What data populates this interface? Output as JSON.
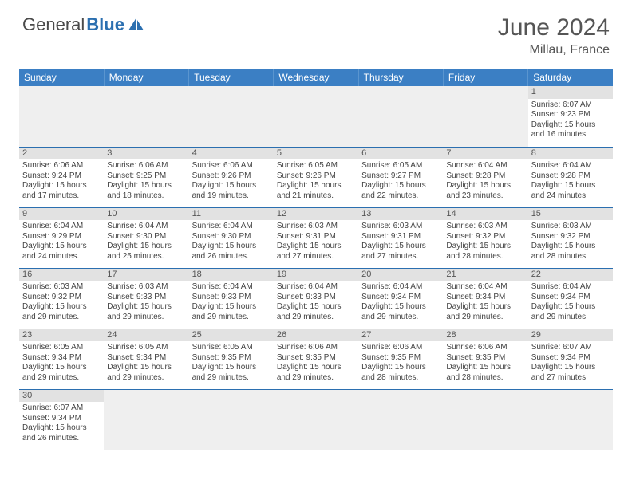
{
  "brand": {
    "part1": "General",
    "part2": "Blue"
  },
  "title": "June 2024",
  "location": "Millau, France",
  "colors": {
    "header_bg": "#3b7fc4",
    "header_text": "#ffffff",
    "day_bar_bg": "#e2e2e2",
    "border": "#2b6fb0",
    "logo_blue": "#2b6fb0",
    "text": "#444444"
  },
  "weekdays": [
    "Sunday",
    "Monday",
    "Tuesday",
    "Wednesday",
    "Thursday",
    "Friday",
    "Saturday"
  ],
  "weeks": [
    [
      null,
      null,
      null,
      null,
      null,
      null,
      {
        "d": "1",
        "sr": "Sunrise: 6:07 AM",
        "ss": "Sunset: 9:23 PM",
        "dl": "Daylight: 15 hours and 16 minutes."
      }
    ],
    [
      {
        "d": "2",
        "sr": "Sunrise: 6:06 AM",
        "ss": "Sunset: 9:24 PM",
        "dl": "Daylight: 15 hours and 17 minutes."
      },
      {
        "d": "3",
        "sr": "Sunrise: 6:06 AM",
        "ss": "Sunset: 9:25 PM",
        "dl": "Daylight: 15 hours and 18 minutes."
      },
      {
        "d": "4",
        "sr": "Sunrise: 6:06 AM",
        "ss": "Sunset: 9:26 PM",
        "dl": "Daylight: 15 hours and 19 minutes."
      },
      {
        "d": "5",
        "sr": "Sunrise: 6:05 AM",
        "ss": "Sunset: 9:26 PM",
        "dl": "Daylight: 15 hours and 21 minutes."
      },
      {
        "d": "6",
        "sr": "Sunrise: 6:05 AM",
        "ss": "Sunset: 9:27 PM",
        "dl": "Daylight: 15 hours and 22 minutes."
      },
      {
        "d": "7",
        "sr": "Sunrise: 6:04 AM",
        "ss": "Sunset: 9:28 PM",
        "dl": "Daylight: 15 hours and 23 minutes."
      },
      {
        "d": "8",
        "sr": "Sunrise: 6:04 AM",
        "ss": "Sunset: 9:28 PM",
        "dl": "Daylight: 15 hours and 24 minutes."
      }
    ],
    [
      {
        "d": "9",
        "sr": "Sunrise: 6:04 AM",
        "ss": "Sunset: 9:29 PM",
        "dl": "Daylight: 15 hours and 24 minutes."
      },
      {
        "d": "10",
        "sr": "Sunrise: 6:04 AM",
        "ss": "Sunset: 9:30 PM",
        "dl": "Daylight: 15 hours and 25 minutes."
      },
      {
        "d": "11",
        "sr": "Sunrise: 6:04 AM",
        "ss": "Sunset: 9:30 PM",
        "dl": "Daylight: 15 hours and 26 minutes."
      },
      {
        "d": "12",
        "sr": "Sunrise: 6:03 AM",
        "ss": "Sunset: 9:31 PM",
        "dl": "Daylight: 15 hours and 27 minutes."
      },
      {
        "d": "13",
        "sr": "Sunrise: 6:03 AM",
        "ss": "Sunset: 9:31 PM",
        "dl": "Daylight: 15 hours and 27 minutes."
      },
      {
        "d": "14",
        "sr": "Sunrise: 6:03 AM",
        "ss": "Sunset: 9:32 PM",
        "dl": "Daylight: 15 hours and 28 minutes."
      },
      {
        "d": "15",
        "sr": "Sunrise: 6:03 AM",
        "ss": "Sunset: 9:32 PM",
        "dl": "Daylight: 15 hours and 28 minutes."
      }
    ],
    [
      {
        "d": "16",
        "sr": "Sunrise: 6:03 AM",
        "ss": "Sunset: 9:32 PM",
        "dl": "Daylight: 15 hours and 29 minutes."
      },
      {
        "d": "17",
        "sr": "Sunrise: 6:03 AM",
        "ss": "Sunset: 9:33 PM",
        "dl": "Daylight: 15 hours and 29 minutes."
      },
      {
        "d": "18",
        "sr": "Sunrise: 6:04 AM",
        "ss": "Sunset: 9:33 PM",
        "dl": "Daylight: 15 hours and 29 minutes."
      },
      {
        "d": "19",
        "sr": "Sunrise: 6:04 AM",
        "ss": "Sunset: 9:33 PM",
        "dl": "Daylight: 15 hours and 29 minutes."
      },
      {
        "d": "20",
        "sr": "Sunrise: 6:04 AM",
        "ss": "Sunset: 9:34 PM",
        "dl": "Daylight: 15 hours and 29 minutes."
      },
      {
        "d": "21",
        "sr": "Sunrise: 6:04 AM",
        "ss": "Sunset: 9:34 PM",
        "dl": "Daylight: 15 hours and 29 minutes."
      },
      {
        "d": "22",
        "sr": "Sunrise: 6:04 AM",
        "ss": "Sunset: 9:34 PM",
        "dl": "Daylight: 15 hours and 29 minutes."
      }
    ],
    [
      {
        "d": "23",
        "sr": "Sunrise: 6:05 AM",
        "ss": "Sunset: 9:34 PM",
        "dl": "Daylight: 15 hours and 29 minutes."
      },
      {
        "d": "24",
        "sr": "Sunrise: 6:05 AM",
        "ss": "Sunset: 9:34 PM",
        "dl": "Daylight: 15 hours and 29 minutes."
      },
      {
        "d": "25",
        "sr": "Sunrise: 6:05 AM",
        "ss": "Sunset: 9:35 PM",
        "dl": "Daylight: 15 hours and 29 minutes."
      },
      {
        "d": "26",
        "sr": "Sunrise: 6:06 AM",
        "ss": "Sunset: 9:35 PM",
        "dl": "Daylight: 15 hours and 29 minutes."
      },
      {
        "d": "27",
        "sr": "Sunrise: 6:06 AM",
        "ss": "Sunset: 9:35 PM",
        "dl": "Daylight: 15 hours and 28 minutes."
      },
      {
        "d": "28",
        "sr": "Sunrise: 6:06 AM",
        "ss": "Sunset: 9:35 PM",
        "dl": "Daylight: 15 hours and 28 minutes."
      },
      {
        "d": "29",
        "sr": "Sunrise: 6:07 AM",
        "ss": "Sunset: 9:34 PM",
        "dl": "Daylight: 15 hours and 27 minutes."
      }
    ],
    [
      {
        "d": "30",
        "sr": "Sunrise: 6:07 AM",
        "ss": "Sunset: 9:34 PM",
        "dl": "Daylight: 15 hours and 26 minutes."
      },
      null,
      null,
      null,
      null,
      null,
      null
    ]
  ]
}
